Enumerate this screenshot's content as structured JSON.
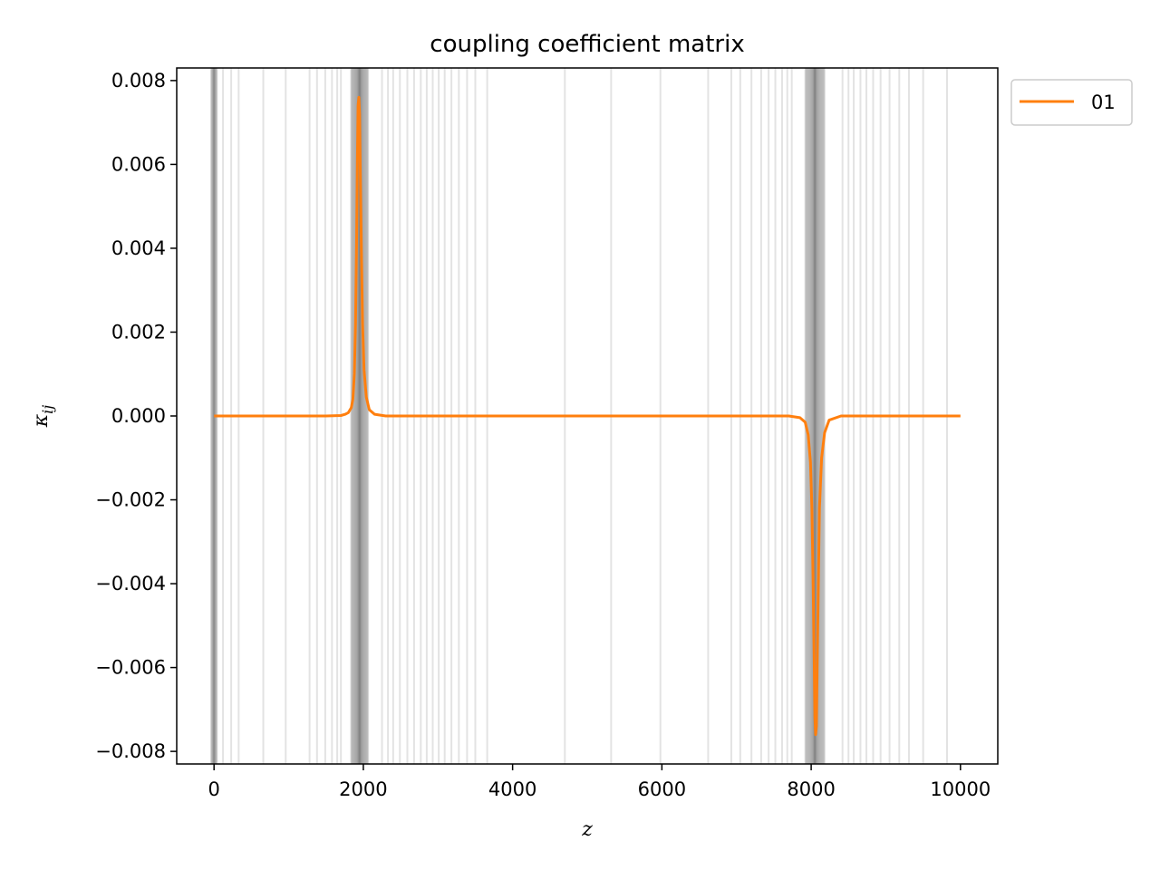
{
  "chart_data": {
    "type": "line",
    "title": "coupling coefficient matrix",
    "xlabel": "z",
    "ylabel": "κ",
    "ylabel_subscript": "ij",
    "xlim": [
      -500,
      10500
    ],
    "ylim": [
      -0.0083,
      0.0083
    ],
    "xticks": [
      0,
      2000,
      4000,
      6000,
      8000,
      10000
    ],
    "xtick_labels": [
      "0",
      "2000",
      "4000",
      "6000",
      "8000",
      "10000"
    ],
    "yticks": [
      -0.008,
      -0.006,
      -0.004,
      -0.002,
      0.0,
      0.002,
      0.004,
      0.006,
      0.008
    ],
    "ytick_labels": [
      "−0.008",
      "−0.006",
      "−0.004",
      "−0.002",
      "0.000",
      "0.002",
      "0.004",
      "0.006",
      "0.008"
    ],
    "legend": {
      "placement": "outside-top-right",
      "entries": [
        "01"
      ]
    },
    "grid": false,
    "colors": {
      "series": "#ff7f0e",
      "grid_lines": "#808080"
    },
    "series": [
      {
        "name": "01",
        "x": [
          0,
          1500,
          1700,
          1760,
          1800,
          1840,
          1860,
          1880,
          1895,
          1910,
          1920,
          1930,
          1940,
          1950,
          1960,
          1975,
          1990,
          2010,
          2040,
          2080,
          2150,
          2300,
          4000,
          6000,
          7700,
          7850,
          7920,
          7960,
          7990,
          8010,
          8025,
          8040,
          8050,
          8060,
          8070,
          8080,
          8095,
          8110,
          8140,
          8180,
          8240,
          8400,
          10000
        ],
        "values": [
          0,
          0,
          1e-05,
          4e-05,
          8e-05,
          0.0002,
          0.0004,
          0.001,
          0.0022,
          0.0042,
          0.006,
          0.0074,
          0.0076,
          0.0072,
          0.0058,
          0.0038,
          0.0022,
          0.0011,
          0.00045,
          0.00015,
          4e-05,
          0,
          0,
          0,
          0,
          -4e-05,
          -0.00015,
          -0.00045,
          -0.0011,
          -0.0022,
          -0.0038,
          -0.0058,
          -0.0072,
          -0.0076,
          -0.0074,
          -0.006,
          -0.0042,
          -0.0022,
          -0.001,
          -0.0004,
          -0.0001,
          0,
          0
        ]
      }
    ],
    "vertical_lines": {
      "dense_clusters": [
        {
          "center": 0,
          "width": 80,
          "count": 22
        },
        {
          "center": 1950,
          "width": 230,
          "count": 60
        },
        {
          "center": 8050,
          "width": 260,
          "count": 60
        }
      ],
      "sparse": [
        120,
        230,
        330,
        660,
        960,
        1280,
        1380,
        1490,
        1580,
        1650,
        1700,
        2250,
        2330,
        2400,
        2490,
        2590,
        2680,
        2770,
        2850,
        2930,
        3010,
        3090,
        3180,
        3280,
        3390,
        3500,
        3660,
        4700,
        5320,
        5980,
        6620,
        6930,
        7050,
        7200,
        7330,
        7430,
        7520,
        7610,
        7680,
        7740,
        8420,
        8500,
        8570,
        8660,
        8740,
        8830,
        8930,
        9050,
        9180,
        9310,
        9500,
        9820
      ]
    }
  }
}
